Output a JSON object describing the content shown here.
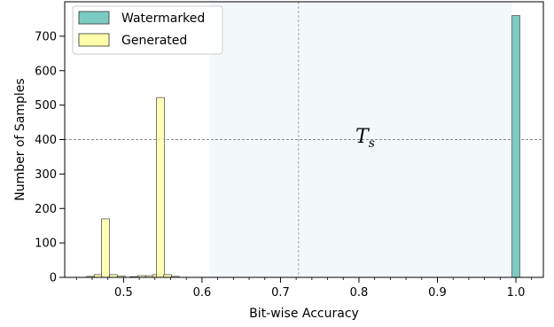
{
  "chart_data": {
    "type": "bar",
    "xlabel": "Bit-wise Accuracy",
    "ylabel": "Number of Samples",
    "xlim": [
      0.425,
      1.035
    ],
    "ylim": [
      0,
      800
    ],
    "xticks": [
      0.5,
      0.6,
      0.7,
      0.8,
      0.9,
      1.0
    ],
    "xtick_labels": [
      "0.5",
      "0.6",
      "0.7",
      "0.8",
      "0.9",
      "1.0"
    ],
    "yticks": [
      0,
      100,
      200,
      300,
      400,
      500,
      600,
      700
    ],
    "ytick_labels": [
      "0",
      "100",
      "200",
      "300",
      "400",
      "500",
      "600",
      "700"
    ],
    "bin_width": 0.01,
    "legend_position": "upper-left",
    "threshold": {
      "label_main": "T",
      "label_sub": "s",
      "horizontal_y": 400,
      "vertical_x": 0.723,
      "shaded_region_x": [
        0.61,
        0.995
      ]
    },
    "series": [
      {
        "name": "Watermarked",
        "color": "#7ccbc2",
        "bins": [
          {
            "x": 1.0,
            "count": 760
          }
        ]
      },
      {
        "name": "Generated",
        "color": "#ffffaa",
        "bins": [
          {
            "x": 0.458,
            "count": 3
          },
          {
            "x": 0.468,
            "count": 8
          },
          {
            "x": 0.477,
            "count": 170
          },
          {
            "x": 0.487,
            "count": 8
          },
          {
            "x": 0.497,
            "count": 4
          },
          {
            "x": 0.513,
            "count": 2
          },
          {
            "x": 0.523,
            "count": 5
          },
          {
            "x": 0.533,
            "count": 5
          },
          {
            "x": 0.542,
            "count": 8
          },
          {
            "x": 0.547,
            "count": 522
          },
          {
            "x": 0.556,
            "count": 8
          },
          {
            "x": 0.566,
            "count": 3
          }
        ]
      }
    ]
  }
}
